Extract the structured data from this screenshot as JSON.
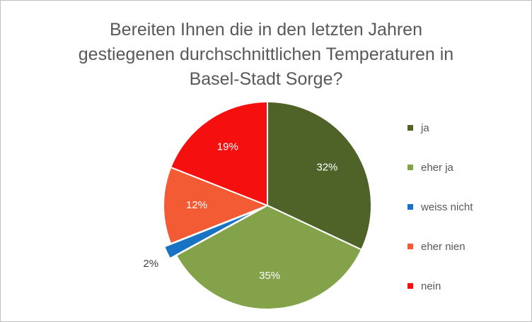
{
  "chart_data": {
    "type": "pie",
    "title_lines": [
      "Bereiten Ihnen die in den letzten Jahren",
      "gestiegenen durchschnittlichen Temperaturen in",
      "Basel-Stadt Sorge?"
    ],
    "slices": [
      {
        "name": "ja",
        "value": 32,
        "label": "32%",
        "color": "#4f6228"
      },
      {
        "name": "eher ja",
        "value": 35,
        "label": "35%",
        "color": "#84a24a"
      },
      {
        "name": "weiss nicht",
        "value": 2,
        "label": "2%",
        "color": "#1873c4",
        "exploded": true
      },
      {
        "name": "eher nien",
        "value": 12,
        "label": "12%",
        "color": "#f35b34"
      },
      {
        "name": "nein",
        "value": 19,
        "label": "19%",
        "color": "#f5100f"
      }
    ],
    "legend_position": "right"
  }
}
